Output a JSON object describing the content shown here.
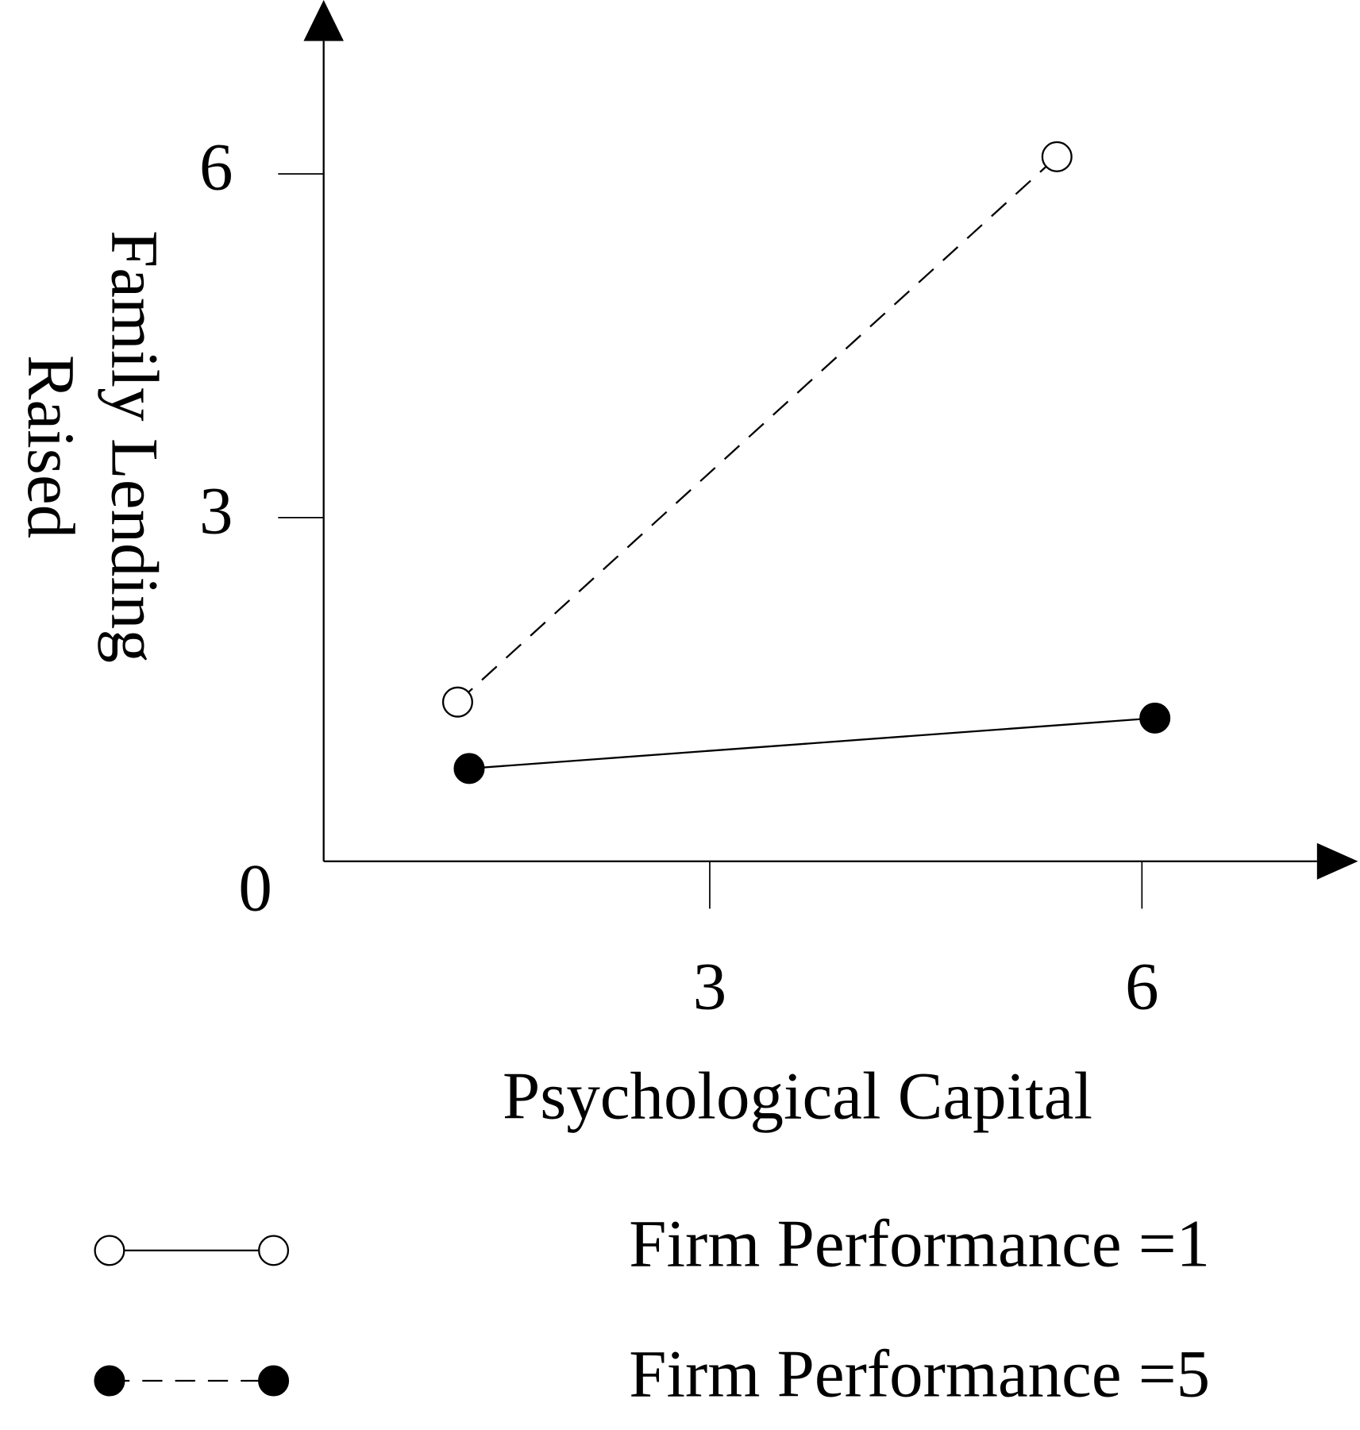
{
  "chart_data": {
    "type": "line",
    "x_label": "Psychological Capital",
    "y_label": [
      "Family Lending",
      "Raised"
    ],
    "xlim": [
      0.32,
      7.5
    ],
    "xticks": [
      3,
      6
    ],
    "ylim": [
      0,
      7.16
    ],
    "yticks": [
      0,
      3,
      6
    ],
    "series": [
      {
        "name": "Firm Performance =1",
        "color": "#000000",
        "marker": "open",
        "dash": true,
        "legend_dash": false,
        "x": [
          1.25,
          5.41
        ],
        "values": [
          1.39,
          6.15
        ]
      },
      {
        "name": "Firm Performance =5",
        "color": "#000000",
        "marker": "filled",
        "dash": false,
        "legend_dash": true,
        "x": [
          1.33,
          6.09
        ],
        "values": [
          0.81,
          1.25
        ]
      }
    ]
  }
}
